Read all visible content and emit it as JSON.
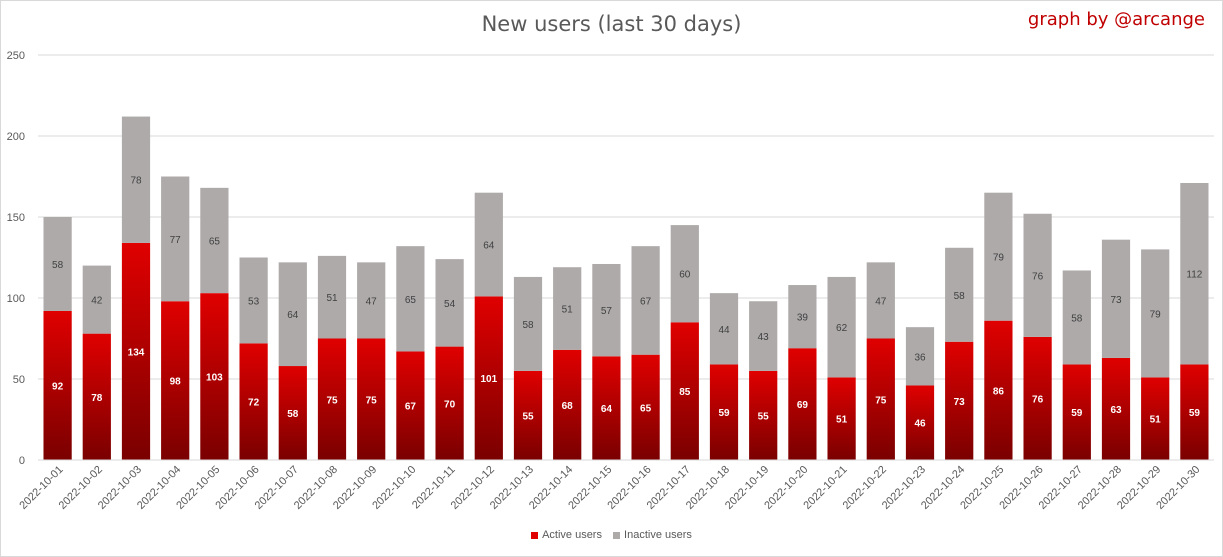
{
  "colors": {
    "active_top": "#e00000",
    "active_bottom": "#7a0000",
    "inactive": "#aeaaaa",
    "grid": "#d9d9d9",
    "axis_text": "#595959",
    "credit": "#c00000"
  },
  "credit": "graph by @arcange",
  "chart_data": {
    "type": "bar",
    "stacked": true,
    "title": "New users (last 30 days)",
    "xlabel": "",
    "ylabel": "",
    "ylim": [
      0,
      250
    ],
    "yticks": [
      "0",
      "50",
      "100",
      "150",
      "200",
      "250"
    ],
    "grid": true,
    "legend_position": "bottom",
    "categories": [
      "2022-10-01",
      "2022-10-02",
      "2022-10-03",
      "2022-10-04",
      "2022-10-05",
      "2022-10-06",
      "2022-10-07",
      "2022-10-08",
      "2022-10-09",
      "2022-10-10",
      "2022-10-11",
      "2022-10-12",
      "2022-10-13",
      "2022-10-14",
      "2022-10-15",
      "2022-10-16",
      "2022-10-17",
      "2022-10-18",
      "2022-10-19",
      "2022-10-20",
      "2022-10-21",
      "2022-10-22",
      "2022-10-23",
      "2022-10-24",
      "2022-10-25",
      "2022-10-26",
      "2022-10-27",
      "2022-10-28",
      "2022-10-29",
      "2022-10-30"
    ],
    "series": [
      {
        "name": "Active users",
        "values": [
          92,
          78,
          134,
          98,
          103,
          72,
          58,
          75,
          75,
          67,
          70,
          101,
          55,
          68,
          64,
          65,
          85,
          59,
          55,
          69,
          51,
          75,
          46,
          73,
          86,
          76,
          59,
          63,
          51,
          59
        ]
      },
      {
        "name": "Inactive users",
        "values": [
          58,
          42,
          78,
          77,
          65,
          53,
          64,
          51,
          47,
          65,
          54,
          64,
          58,
          51,
          57,
          67,
          60,
          44,
          43,
          39,
          62,
          47,
          36,
          58,
          79,
          76,
          58,
          73,
          79,
          112
        ]
      }
    ]
  }
}
